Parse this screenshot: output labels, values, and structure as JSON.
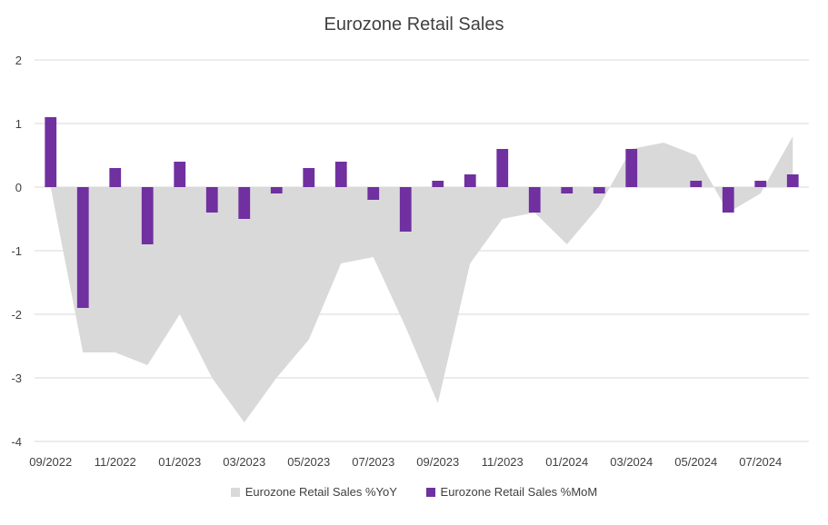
{
  "chart_data": {
    "type": "bar",
    "title": "Eurozone Retail Sales",
    "xlabel": "",
    "ylabel": "",
    "ylim": [
      -4,
      2
    ],
    "yticks": [
      2,
      1,
      0,
      -1,
      -2,
      -3,
      -4
    ],
    "grid": true,
    "legend_position": "bottom",
    "categories": [
      "09/2022",
      "10/2022",
      "11/2022",
      "12/2022",
      "01/2023",
      "02/2023",
      "03/2023",
      "04/2023",
      "05/2023",
      "06/2023",
      "07/2023",
      "08/2023",
      "09/2023",
      "10/2023",
      "11/2023",
      "12/2023",
      "01/2024",
      "02/2024",
      "03/2024",
      "04/2024",
      "05/2024",
      "06/2024",
      "07/2024",
      "08/2024"
    ],
    "x_tick_labels": [
      "09/2022",
      "",
      "11/2022",
      "",
      "01/2023",
      "",
      "03/2023",
      "",
      "05/2023",
      "",
      "07/2023",
      "",
      "09/2023",
      "",
      "11/2023",
      "",
      "01/2024",
      "",
      "03/2024",
      "",
      "05/2024",
      "",
      "07/2024",
      ""
    ],
    "series": [
      {
        "name": "Eurozone Retail Sales %YoY",
        "type": "area",
        "color": "#d9d9d9",
        "values": [
          0.0,
          -2.6,
          -2.6,
          -2.8,
          -2.0,
          -3.0,
          -3.7,
          -3.0,
          -2.4,
          -1.2,
          -1.1,
          -2.2,
          -3.4,
          -1.2,
          -0.5,
          -0.4,
          -0.9,
          -0.3,
          0.6,
          0.7,
          0.5,
          -0.4,
          -0.1,
          0.8
        ]
      },
      {
        "name": "Eurozone Retail Sales %MoM",
        "type": "bar",
        "color": "#7030a0",
        "values": [
          1.1,
          -1.9,
          0.3,
          -0.9,
          0.4,
          -0.4,
          -0.5,
          -0.1,
          0.3,
          0.4,
          -0.2,
          -0.7,
          0.1,
          0.2,
          0.6,
          -0.4,
          -0.1,
          -0.1,
          0.6,
          0.0,
          0.1,
          -0.4,
          0.1,
          0.2
        ]
      }
    ]
  }
}
